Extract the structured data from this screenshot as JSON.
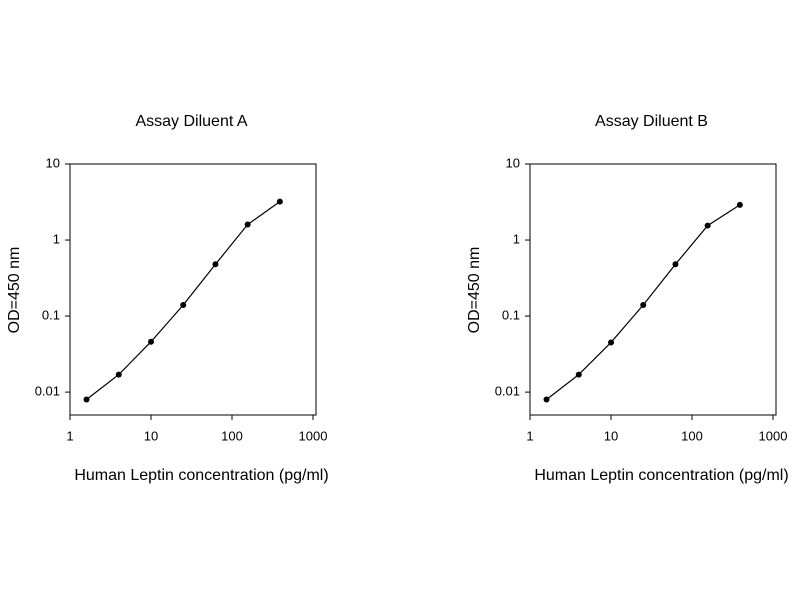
{
  "chart_data": [
    {
      "type": "line",
      "title": "Assay Diluent A",
      "xlabel": "Human Leptin concentration (pg/ml)",
      "ylabel": "OD=450 nm",
      "xscale": "log",
      "yscale": "log",
      "color": "#000000",
      "x": [
        1.6,
        4,
        10,
        25,
        62.5,
        156,
        390
      ],
      "values": [
        0.008,
        0.017,
        0.046,
        0.14,
        0.48,
        1.6,
        3.2
      ],
      "xlim": [
        1,
        1000
      ],
      "ylim": [
        0.005,
        10
      ],
      "xticks": [
        1,
        10,
        100,
        1000
      ],
      "yticks": [
        0.01,
        0.1,
        1,
        10
      ]
    },
    {
      "type": "line",
      "title": "Assay Diluent B",
      "xlabel": "Human Leptin concentration (pg/ml)",
      "ylabel": "OD=450 nm",
      "xscale": "log",
      "yscale": "log",
      "color": "#000000",
      "x": [
        1.6,
        4,
        10,
        25,
        62.5,
        156,
        390
      ],
      "values": [
        0.008,
        0.017,
        0.045,
        0.14,
        0.48,
        1.55,
        2.9
      ],
      "xlim": [
        1,
        1000
      ],
      "ylim": [
        0.005,
        10
      ],
      "xticks": [
        1,
        10,
        100,
        1000
      ],
      "yticks": [
        0.01,
        0.1,
        1,
        10
      ]
    }
  ]
}
